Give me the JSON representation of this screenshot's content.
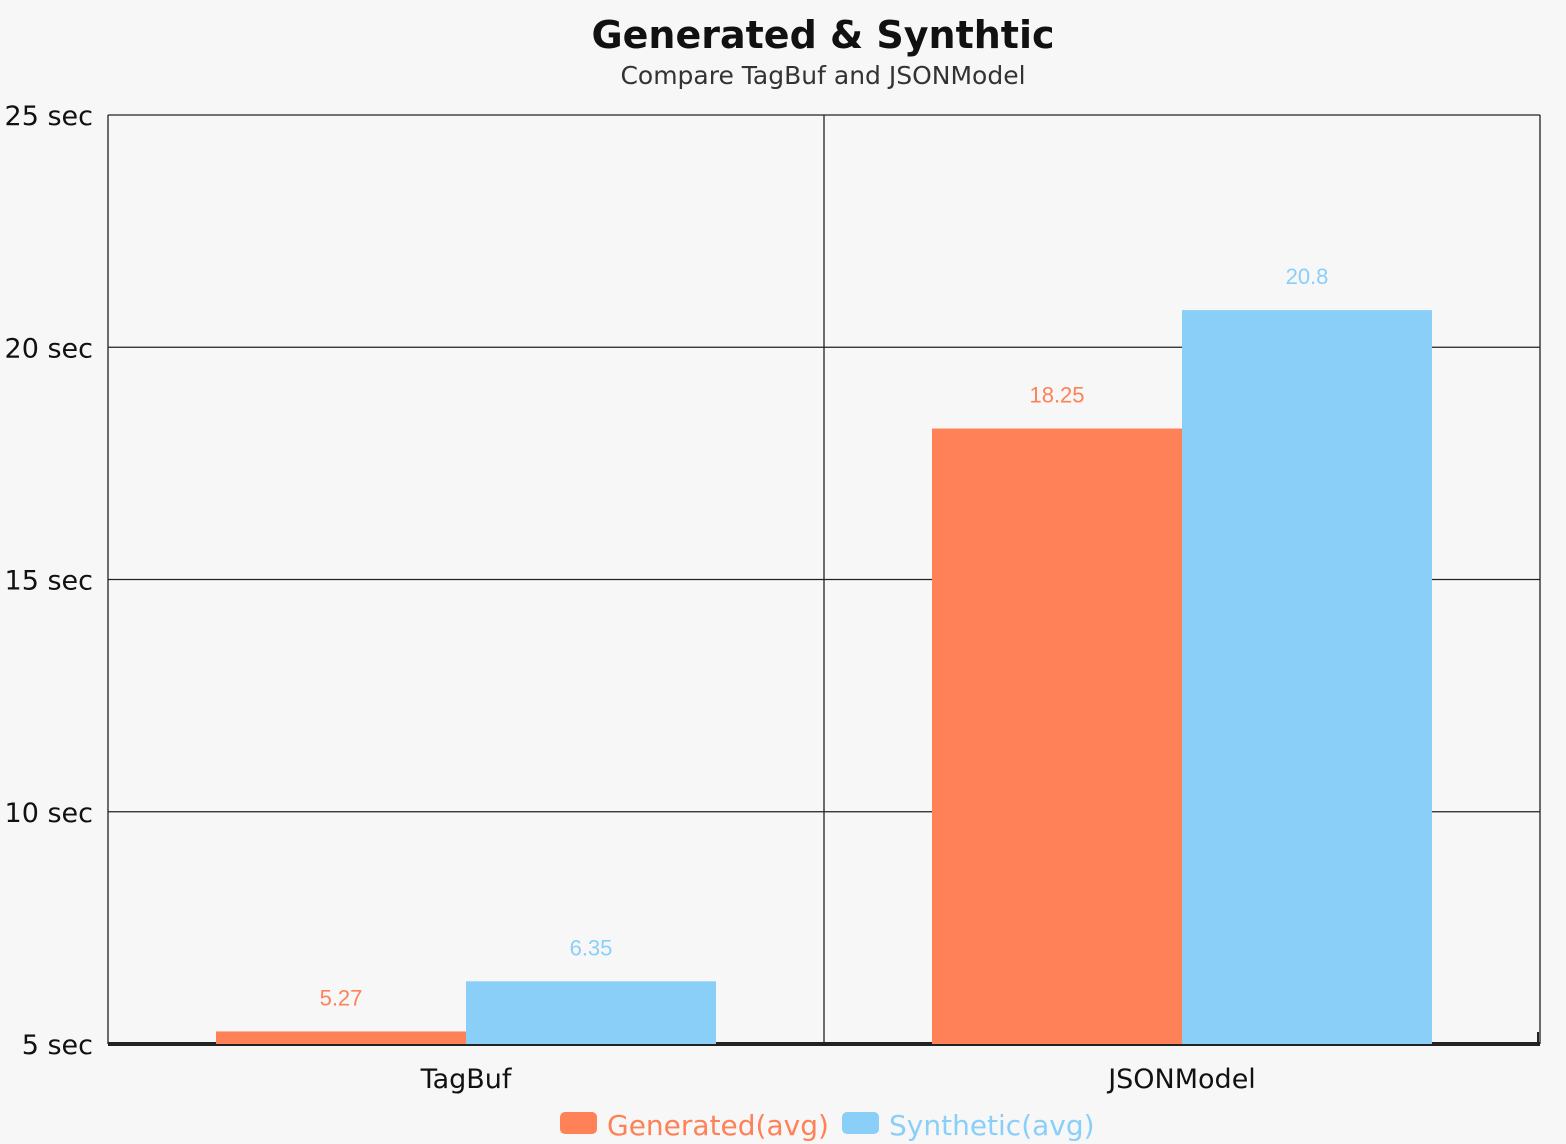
{
  "colors": {
    "background": "#f7f7f7",
    "grid": "#222222",
    "text": "#111111"
  },
  "chart_data": {
    "type": "bar",
    "title": "Generated & Synthtic",
    "subtitle": "Compare TagBuf and JSONModel",
    "categories": [
      "TagBuf",
      "JSONModel"
    ],
    "series": [
      {
        "name": "Generated(avg)",
        "color": "#ff8157",
        "values": [
          5.27,
          18.25
        ],
        "labels": [
          "5.27",
          "18.25"
        ]
      },
      {
        "name": "Synthetic(avg)",
        "color": "#8acff8",
        "values": [
          6.35,
          20.8
        ],
        "labels": [
          "6.35",
          "20.8"
        ]
      }
    ],
    "ylim": [
      5,
      25
    ],
    "yticks": [
      {
        "value": 5,
        "label": "5 sec"
      },
      {
        "value": 10,
        "label": "10 sec"
      },
      {
        "value": 15,
        "label": "15 sec"
      },
      {
        "value": 20,
        "label": "20 sec"
      },
      {
        "value": 25,
        "label": "25 sec"
      }
    ],
    "xlabel": "",
    "ylabel": "",
    "grid": true,
    "legend_position": "bottom-center"
  }
}
